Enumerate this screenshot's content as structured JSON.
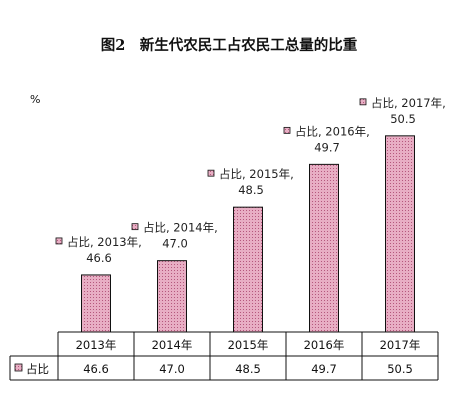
{
  "chart_data": {
    "type": "bar",
    "title": "图2　新生代农民工占农民工总量的比重",
    "unit": "%",
    "categories": [
      "2013年",
      "2014年",
      "2015年",
      "2016年",
      "2017年"
    ],
    "series": [
      {
        "name": "占比",
        "values": [
          46.6,
          47.0,
          48.5,
          49.7,
          50.5
        ],
        "value_labels": [
          "46.6",
          "47.0",
          "48.5",
          "49.7",
          "50.5"
        ],
        "color": "#e8aec4"
      }
    ],
    "data_labels": [
      "占比, 2013年,",
      "占比, 2014年,",
      "占比, 2015年,",
      "占比, 2016年,",
      "占比, 2017年,"
    ],
    "ylim": [
      45,
      51
    ],
    "grid": false,
    "legend": "data-table",
    "bar_border_color": "#111111"
  }
}
